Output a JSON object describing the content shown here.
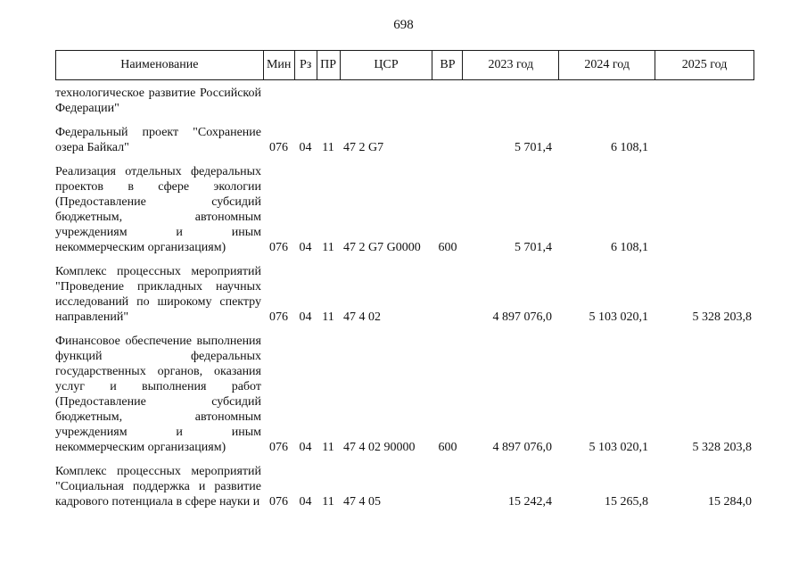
{
  "page": {
    "number": "698"
  },
  "table": {
    "headers": [
      "Наименование",
      "Мин",
      "Рз",
      "ПР",
      "ЦСР",
      "ВР",
      "2023 год",
      "2024 год",
      "2025 год"
    ],
    "rows": [
      {
        "name": "технологическое развитие Российской Федерации\"",
        "min": "",
        "rz": "",
        "pr": "",
        "csr": "",
        "vr": "",
        "y2023": "",
        "y2024": "",
        "y2025": ""
      },
      {
        "name": "Федеральный проект \"Сохранение озера Байкал\"",
        "min": "076",
        "rz": "04",
        "pr": "11",
        "csr": "47 2 G7",
        "vr": "",
        "y2023": "5 701,4",
        "y2024": "6 108,1",
        "y2025": ""
      },
      {
        "name": "Реализация отдельных федеральных проектов в сфере экологии (Предоставление субсидий бюджетным, автономным учреждениям и иным некоммерческим организациям)",
        "min": "076",
        "rz": "04",
        "pr": "11",
        "csr": "47 2 G7 G0000",
        "vr": "600",
        "y2023": "5 701,4",
        "y2024": "6 108,1",
        "y2025": ""
      },
      {
        "name": "Комплекс процессных мероприятий \"Проведение прикладных научных исследований по широкому спектру направлений\"",
        "min": "076",
        "rz": "04",
        "pr": "11",
        "csr": "47 4 02",
        "vr": "",
        "y2023": "4 897 076,0",
        "y2024": "5 103 020,1",
        "y2025": "5 328 203,8"
      },
      {
        "name": "Финансовое обеспечение выполнения функций федеральных государственных органов, оказания услуг и выполнения работ (Предоставление субсидий бюджетным, автономным учреждениям и иным некоммерческим организациям)",
        "min": "076",
        "rz": "04",
        "pr": "11",
        "csr": "47 4 02 90000",
        "vr": "600",
        "y2023": "4 897 076,0",
        "y2024": "5 103 020,1",
        "y2025": "5 328 203,8"
      },
      {
        "name": "Комплекс процессных мероприятий \"Социальная поддержка и развитие кадрового потенциала в сфере науки и",
        "min": "076",
        "rz": "04",
        "pr": "11",
        "csr": "47 4 05",
        "vr": "",
        "y2023": "15 242,4",
        "y2024": "15 265,8",
        "y2025": "15 284,0"
      }
    ]
  }
}
